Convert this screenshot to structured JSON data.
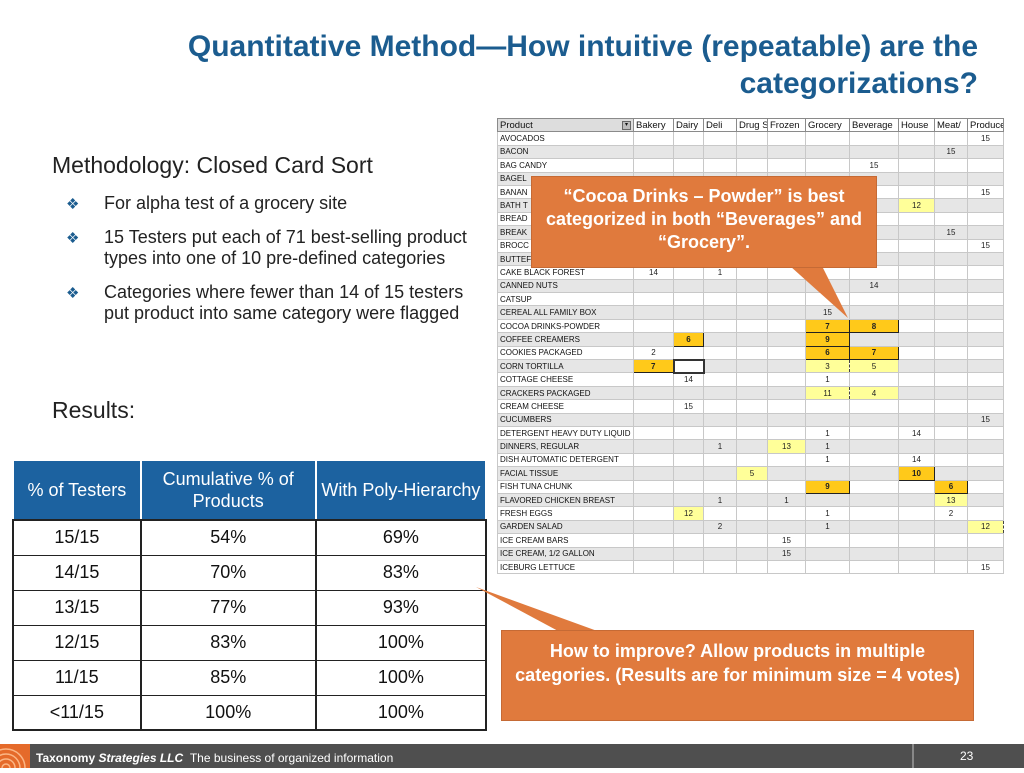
{
  "title": "Quantitative Method—How intuitive (repeatable) are the categorizations?",
  "methodology_heading": "Methodology: Closed Card Sort",
  "bullet_icon": "diamond-4-icon",
  "bullets": [
    "For alpha test of a grocery site",
    "15 Testers put each of 71 best-selling product types into one of 10 pre-defined categories",
    "Categories where fewer than 14 of 15 testers put product into same category were flagged"
  ],
  "results_heading": "Results:",
  "results_table": {
    "headers": [
      "% of Testers",
      "Cumulative % of Products",
      "With Poly-Hierarchy"
    ],
    "rows": [
      [
        "15/15",
        "54%",
        "69%"
      ],
      [
        "14/15",
        "70%",
        "83%"
      ],
      [
        "13/15",
        "77%",
        "93%"
      ],
      [
        "12/15",
        "83%",
        "100%"
      ],
      [
        "11/15",
        "85%",
        "100%"
      ],
      [
        "<11/15",
        "100%",
        "100%"
      ]
    ]
  },
  "sort_grid": {
    "headers": [
      "Product",
      "Bakery",
      "Dairy",
      "Deli",
      "Drug S",
      "Frozen",
      "Grocery",
      "Beverage",
      "House",
      "Meat/",
      "Produce"
    ],
    "rows": [
      {
        "name": "AVOCADOS",
        "cells": [
          "",
          "",
          "",
          "",
          "",
          "",
          "",
          "",
          "",
          "15"
        ]
      },
      {
        "name": "BACON",
        "cells": [
          "",
          "",
          "",
          "",
          "",
          "",
          "",
          "",
          "15",
          ""
        ]
      },
      {
        "name": "BAG CANDY",
        "cells": [
          "",
          "",
          "",
          "",
          "",
          "",
          "15",
          "",
          "",
          ""
        ]
      },
      {
        "name": "BAGEL",
        "cells": [
          "",
          "",
          "",
          "",
          "",
          "",
          "",
          "",
          "",
          ""
        ]
      },
      {
        "name": "BANAN",
        "cells": [
          "",
          "",
          "",
          "",
          "",
          "",
          "",
          "",
          "",
          "15"
        ]
      },
      {
        "name": "BATH T",
        "cells": [
          "",
          "",
          "",
          "",
          "",
          "",
          "",
          "12",
          "",
          ""
        ]
      },
      {
        "name": "BREAD",
        "cells": [
          "",
          "",
          "",
          "",
          "",
          "",
          "",
          "",
          "",
          ""
        ]
      },
      {
        "name": "BREAK",
        "cells": [
          "",
          "",
          "",
          "",
          "",
          "",
          "",
          "",
          "15",
          ""
        ]
      },
      {
        "name": "BROCC",
        "cells": [
          "",
          "",
          "",
          "",
          "",
          "",
          "",
          "",
          "",
          "15"
        ]
      },
      {
        "name": "BUTTEF",
        "cells": [
          "",
          "",
          "",
          "",
          "",
          "",
          "",
          "",
          "",
          ""
        ]
      },
      {
        "name": "CAKE BLACK FOREST",
        "cells": [
          "14",
          "",
          "1",
          "",
          "",
          "",
          "",
          "",
          "",
          ""
        ]
      },
      {
        "name": "CANNED NUTS",
        "cells": [
          "",
          "",
          "",
          "",
          "",
          "",
          "14",
          "",
          "",
          ""
        ]
      },
      {
        "name": "CATSUP",
        "cells": [
          "",
          "",
          "",
          "",
          "",
          "",
          "",
          "",
          "",
          ""
        ]
      },
      {
        "name": "CEREAL ALL FAMILY BOX",
        "cells": [
          "",
          "",
          "",
          "",
          "",
          "15",
          "",
          "",
          "",
          ""
        ]
      },
      {
        "name": "COCOA DRINKS-POWDER",
        "cells": [
          "",
          "",
          "",
          "",
          "",
          "7",
          "8",
          "",
          "",
          ""
        ]
      },
      {
        "name": "COFFEE CREAMERS",
        "cells": [
          "",
          "6",
          "",
          "",
          "",
          "9",
          "",
          "",
          "",
          ""
        ]
      },
      {
        "name": "COOKIES PACKAGED",
        "cells": [
          "2",
          "",
          "",
          "",
          "",
          "6",
          "7",
          "",
          "",
          ""
        ]
      },
      {
        "name": "CORN TORTILLA",
        "cells": [
          "7",
          "",
          "",
          "",
          "",
          "3",
          "5",
          "",
          "",
          ""
        ]
      },
      {
        "name": "COTTAGE CHEESE",
        "cells": [
          "",
          "14",
          "",
          "",
          "",
          "1",
          "",
          "",
          "",
          ""
        ]
      },
      {
        "name": "CRACKERS PACKAGED",
        "cells": [
          "",
          "",
          "",
          "",
          "",
          "11",
          "4",
          "",
          "",
          ""
        ]
      },
      {
        "name": "CREAM CHEESE",
        "cells": [
          "",
          "15",
          "",
          "",
          "",
          "",
          "",
          "",
          "",
          ""
        ]
      },
      {
        "name": "CUCUMBERS",
        "cells": [
          "",
          "",
          "",
          "",
          "",
          "",
          "",
          "",
          "",
          "15"
        ]
      },
      {
        "name": "DETERGENT HEAVY DUTY LIQUID",
        "cells": [
          "",
          "",
          "",
          "",
          "",
          "1",
          "",
          "14",
          "",
          ""
        ]
      },
      {
        "name": "DINNERS, REGULAR",
        "cells": [
          "",
          "",
          "1",
          "",
          "13",
          "1",
          "",
          "",
          "",
          ""
        ]
      },
      {
        "name": "DISH AUTOMATIC DETERGENT",
        "cells": [
          "",
          "",
          "",
          "",
          "",
          "1",
          "",
          "14",
          "",
          ""
        ]
      },
      {
        "name": "FACIAL TISSUE",
        "cells": [
          "",
          "",
          "",
          "5",
          "",
          "",
          "",
          "10",
          "",
          ""
        ]
      },
      {
        "name": "FISH TUNA CHUNK",
        "cells": [
          "",
          "",
          "",
          "",
          "",
          "9",
          "",
          "",
          "6",
          ""
        ]
      },
      {
        "name": "FLAVORED CHICKEN BREAST",
        "cells": [
          "",
          "",
          "1",
          "",
          "1",
          "",
          "",
          "",
          "13",
          ""
        ]
      },
      {
        "name": "FRESH EGGS",
        "cells": [
          "",
          "12",
          "",
          "",
          "",
          "1",
          "",
          "",
          "2",
          ""
        ]
      },
      {
        "name": "GARDEN SALAD",
        "cells": [
          "",
          "",
          "2",
          "",
          "",
          "1",
          "",
          "",
          "",
          "12"
        ]
      },
      {
        "name": "ICE CREAM BARS",
        "cells": [
          "",
          "",
          "",
          "",
          "15",
          "",
          "",
          "",
          "",
          ""
        ]
      },
      {
        "name": "ICE CREAM, 1/2 GALLON",
        "cells": [
          "",
          "",
          "",
          "",
          "15",
          "",
          "",
          "",
          "",
          ""
        ]
      },
      {
        "name": "ICEBURG LETTUCE",
        "cells": [
          "",
          "",
          "",
          "",
          "",
          "",
          "",
          "",
          "",
          "15"
        ]
      }
    ]
  },
  "callouts": {
    "cocoa": "“Cocoa Drinks – Powder” is best categorized in both “Beverages” and “Grocery”.",
    "improve": "How to improve? Allow products in multiple categories. (Results are for minimum size = 4 votes)"
  },
  "colors": {
    "title": "#1b5c8f",
    "table_header": "#1c62a0",
    "callout": "#e07a3d",
    "highlight_solid": "#ffc91a",
    "highlight_dashed": "#ffff99",
    "footer": "#4f4f4f"
  },
  "footer": {
    "company_a": "Taxonomy",
    "company_b": "Strategies LLC",
    "tagline": "The business of organized information",
    "page_number": "23"
  }
}
